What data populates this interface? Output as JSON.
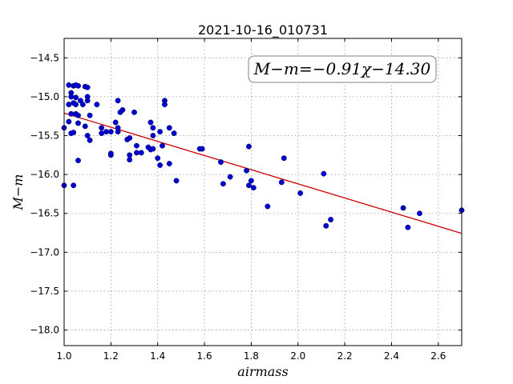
{
  "chart_data": {
    "type": "scatter",
    "title": "2021-10-16_010731",
    "xlabel": "airmass",
    "ylabel": "M−m",
    "xlim": [
      1.0,
      2.7
    ],
    "ylim": [
      -18.2,
      -14.25
    ],
    "y_inverted": true,
    "grid": true,
    "xticks": [
      1.0,
      1.2,
      1.4,
      1.6,
      1.8,
      2.0,
      2.2,
      2.4,
      2.6
    ],
    "xtick_labels": [
      "1.0",
      "1.2",
      "1.4",
      "1.6",
      "1.8",
      "2.0",
      "2.2",
      "2.4",
      "2.6"
    ],
    "yticks": [
      -14.5,
      -15.0,
      -15.5,
      -16.0,
      -16.5,
      -17.0,
      -17.5,
      -18.0
    ],
    "ytick_labels": [
      "−14.5",
      "−15.0",
      "−15.5",
      "−16.0",
      "−16.5",
      "−17.0",
      "−17.5",
      "−18.0"
    ],
    "annotation": "M−m=−0.91χ−14.30",
    "annotation_position": "top-right",
    "fit": {
      "slope": -0.91,
      "intercept": -14.3,
      "color": "#cc0000"
    },
    "point_color": "#0000cc",
    "points": [
      [
        1.0,
        -15.4
      ],
      [
        1.0,
        -16.14
      ],
      [
        1.02,
        -14.85
      ],
      [
        1.02,
        -15.1
      ],
      [
        1.02,
        -15.32
      ],
      [
        1.03,
        -15.47
      ],
      [
        1.03,
        -15.22
      ],
      [
        1.03,
        -14.95
      ],
      [
        1.03,
        -15.0
      ],
      [
        1.04,
        -14.86
      ],
      [
        1.04,
        -15.08
      ],
      [
        1.04,
        -15.46
      ],
      [
        1.04,
        -16.14
      ],
      [
        1.05,
        -15.01
      ],
      [
        1.05,
        -15.22
      ],
      [
        1.05,
        -14.85
      ],
      [
        1.05,
        -15.1
      ],
      [
        1.06,
        -14.86
      ],
      [
        1.06,
        -15.24
      ],
      [
        1.06,
        -15.34
      ],
      [
        1.06,
        -15.82
      ],
      [
        1.07,
        -15.05
      ],
      [
        1.08,
        -15.1
      ],
      [
        1.09,
        -14.87
      ],
      [
        1.09,
        -15.38
      ],
      [
        1.1,
        -14.88
      ],
      [
        1.1,
        -15.0
      ],
      [
        1.1,
        -15.05
      ],
      [
        1.1,
        -15.5
      ],
      [
        1.11,
        -15.56
      ],
      [
        1.11,
        -15.24
      ],
      [
        1.14,
        -15.1
      ],
      [
        1.16,
        -15.4
      ],
      [
        1.16,
        -15.47
      ],
      [
        1.18,
        -15.45
      ],
      [
        1.2,
        -15.45
      ],
      [
        1.2,
        -15.75
      ],
      [
        1.2,
        -15.73
      ],
      [
        1.22,
        -15.33
      ],
      [
        1.23,
        -15.05
      ],
      [
        1.23,
        -15.45
      ],
      [
        1.23,
        -15.4
      ],
      [
        1.24,
        -15.2
      ],
      [
        1.25,
        -15.17
      ],
      [
        1.27,
        -15.55
      ],
      [
        1.28,
        -15.53
      ],
      [
        1.28,
        -15.81
      ],
      [
        1.28,
        -15.75
      ],
      [
        1.3,
        -15.2
      ],
      [
        1.31,
        -15.63
      ],
      [
        1.31,
        -15.72
      ],
      [
        1.33,
        -15.72
      ],
      [
        1.36,
        -15.65
      ],
      [
        1.37,
        -15.33
      ],
      [
        1.37,
        -15.68
      ],
      [
        1.38,
        -15.67
      ],
      [
        1.38,
        -15.4
      ],
      [
        1.38,
        -15.5
      ],
      [
        1.4,
        -15.79
      ],
      [
        1.41,
        -15.88
      ],
      [
        1.41,
        -15.45
      ],
      [
        1.42,
        -15.63
      ],
      [
        1.43,
        -15.05
      ],
      [
        1.43,
        -15.1
      ],
      [
        1.45,
        -15.86
      ],
      [
        1.45,
        -15.4
      ],
      [
        1.47,
        -15.47
      ],
      [
        1.48,
        -16.08
      ],
      [
        1.58,
        -15.67
      ],
      [
        1.59,
        -15.67
      ],
      [
        1.67,
        -15.84
      ],
      [
        1.68,
        -16.12
      ],
      [
        1.71,
        -16.03
      ],
      [
        1.78,
        -15.95
      ],
      [
        1.79,
        -15.64
      ],
      [
        1.79,
        -16.14
      ],
      [
        1.8,
        -16.08
      ],
      [
        1.81,
        -16.17
      ],
      [
        1.87,
        -16.41
      ],
      [
        1.93,
        -16.1
      ],
      [
        1.94,
        -15.79
      ],
      [
        2.01,
        -16.24
      ],
      [
        2.11,
        -15.99
      ],
      [
        2.12,
        -16.66
      ],
      [
        2.14,
        -16.58
      ],
      [
        2.45,
        -16.43
      ],
      [
        2.47,
        -16.68
      ],
      [
        2.52,
        -16.5
      ],
      [
        2.7,
        -16.46
      ]
    ]
  }
}
